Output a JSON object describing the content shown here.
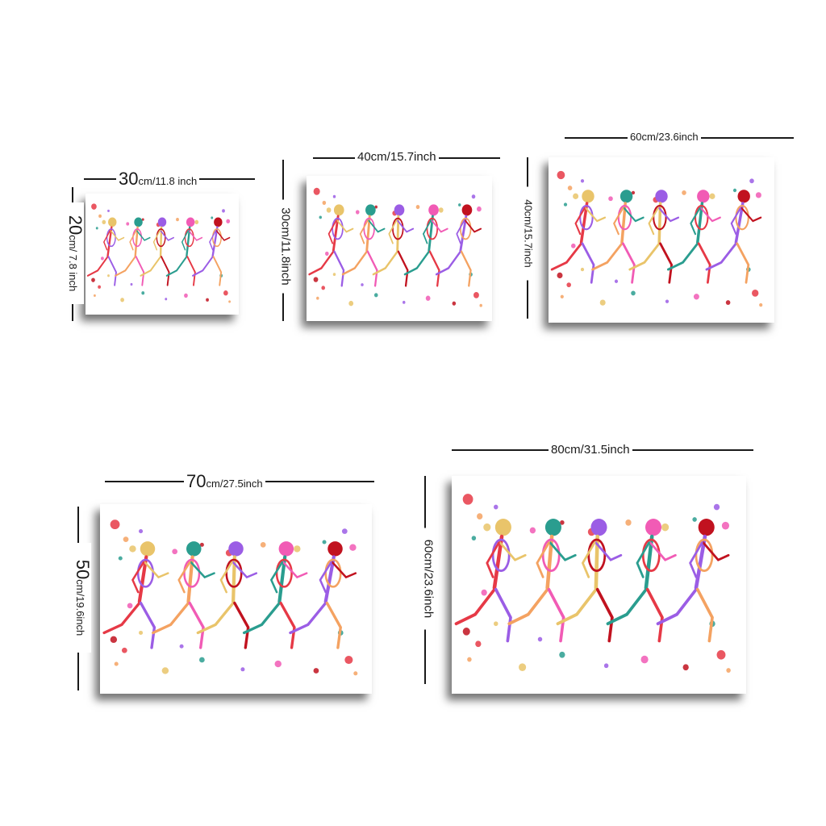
{
  "sizes": [
    {
      "width_num": "30",
      "width_unit": "cm/11.8 inch",
      "height_num": "20",
      "height_unit": "cm/ 7.8 inch"
    },
    {
      "width_label": "40cm/15.7inch",
      "height_label": "30cm/11.8inch"
    },
    {
      "width_label": "60cm/23.6inch",
      "height_label": "40cm/15.7inch"
    },
    {
      "width_num": "70",
      "width_unit": "cm/27.5inch",
      "height_num": "50",
      "height_unit": "cm/19.6inch"
    },
    {
      "width_label": "80cm/31.5inch",
      "height_label": "60cm/23.6inch"
    }
  ],
  "artwork": {
    "subject": "running-skeletons-icon",
    "figure_count": 5
  },
  "colors": {
    "line": "#1a1a1a",
    "background": "#ffffff",
    "palette": [
      "#e63946",
      "#f4a261",
      "#e9c46a",
      "#2a9d8f",
      "#9b5de5",
      "#f15bb5",
      "#c1121f"
    ]
  }
}
